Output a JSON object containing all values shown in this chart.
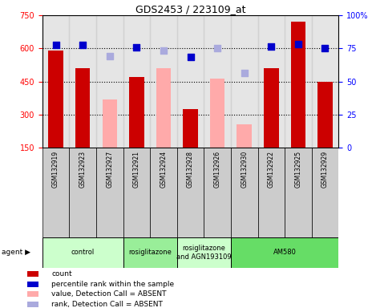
{
  "title": "GDS2453 / 223109_at",
  "samples": [
    "GSM132919",
    "GSM132923",
    "GSM132927",
    "GSM132921",
    "GSM132924",
    "GSM132928",
    "GSM132926",
    "GSM132930",
    "GSM132922",
    "GSM132925",
    "GSM132929"
  ],
  "bar_values_present": [
    590,
    510,
    null,
    470,
    null,
    325,
    null,
    null,
    510,
    720,
    450
  ],
  "bar_values_absent": [
    null,
    null,
    370,
    null,
    510,
    null,
    465,
    255,
    null,
    null,
    null
  ],
  "dot_present": [
    615,
    615,
    null,
    605,
    null,
    560,
    null,
    null,
    608,
    620,
    600
  ],
  "dot_absent": [
    null,
    null,
    565,
    null,
    590,
    null,
    600,
    490,
    null,
    null,
    null
  ],
  "ylim_left": [
    150,
    750
  ],
  "ylim_right": [
    0,
    100
  ],
  "yticks_left": [
    150,
    300,
    450,
    600,
    750
  ],
  "yticks_right": [
    0,
    25,
    50,
    75,
    100
  ],
  "group_bounds": [
    [
      0,
      3,
      "control",
      "#ccffcc"
    ],
    [
      3,
      5,
      "rosiglitazone",
      "#99ee99"
    ],
    [
      5,
      7,
      "rosiglitazone\nand AGN193109",
      "#ccffcc"
    ],
    [
      7,
      11,
      "AM580",
      "#66dd66"
    ]
  ],
  "color_bar_present": "#cc0000",
  "color_bar_absent": "#ffaaaa",
  "color_dot_present": "#0000cc",
  "color_dot_absent": "#aaaadd",
  "bar_width": 0.55,
  "bg_samples": "#cccccc",
  "legend_items": [
    [
      "#cc0000",
      "count"
    ],
    [
      "#0000cc",
      "percentile rank within the sample"
    ],
    [
      "#ffaaaa",
      "value, Detection Call = ABSENT"
    ],
    [
      "#aaaadd",
      "rank, Detection Call = ABSENT"
    ]
  ]
}
